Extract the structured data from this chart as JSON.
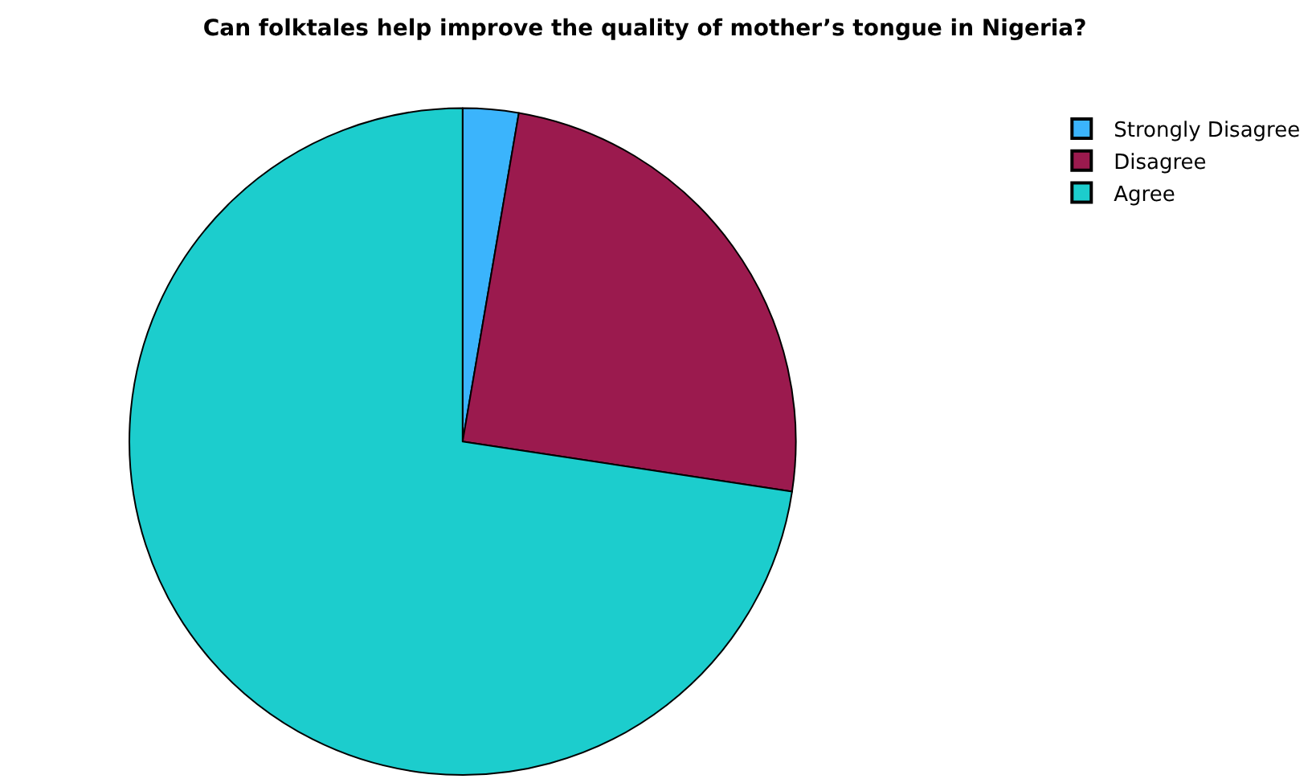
{
  "chart_data": {
    "type": "pie",
    "title": "Can folktales help improve the quality of mother’s tongue in Nigeria?",
    "categories": [
      "Strongly Disagree",
      "Disagree",
      "Agree"
    ],
    "values": [
      2.7,
      24.7,
      72.6
    ],
    "colors": [
      "#3bb4fc",
      "#9b1a4e",
      "#1ccdcd"
    ],
    "legend": "top right"
  }
}
